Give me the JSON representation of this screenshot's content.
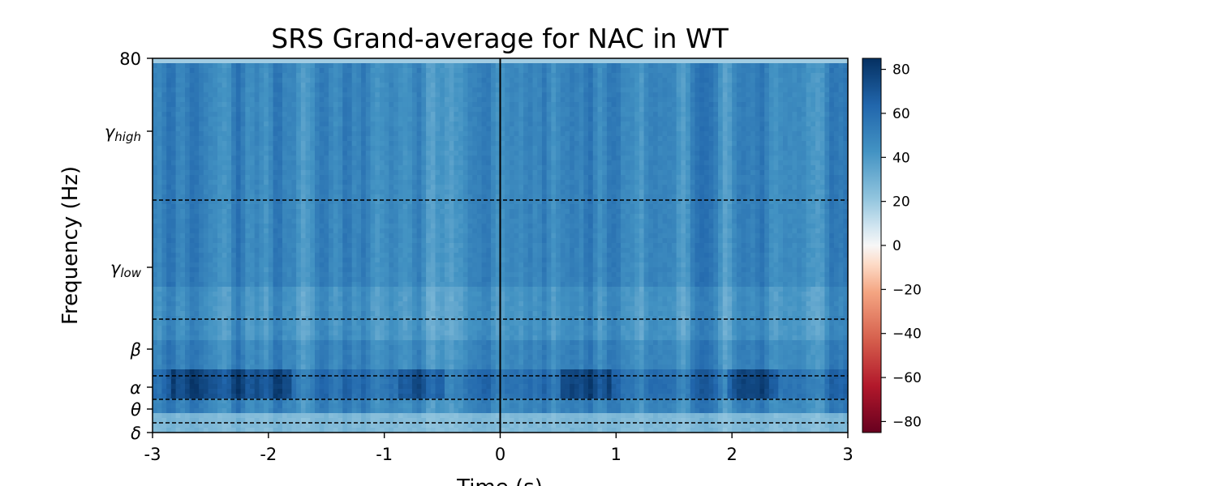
{
  "chart_data": {
    "type": "heatmap",
    "title": "SRS Grand-average for NAC in WT",
    "xlabel": "Time (s)",
    "ylabel": "Frequency (Hz)",
    "x_ticks": [
      {
        "value": -3,
        "label": "-3"
      },
      {
        "value": -2,
        "label": "-2"
      },
      {
        "value": -1,
        "label": "-1"
      },
      {
        "value": 0,
        "label": "0"
      },
      {
        "value": 1,
        "label": "1"
      },
      {
        "value": 2,
        "label": "2"
      },
      {
        "value": 3,
        "label": "3"
      }
    ],
    "xlim": [
      -3,
      3
    ],
    "ylim": [
      2,
      80
    ],
    "y_ticks": [
      {
        "value": 2,
        "label": "δ"
      },
      {
        "value": 7,
        "label": "θ"
      },
      {
        "value": 12,
        "label": "α"
      },
      {
        "value": 20,
        "label": "β",
        "italic": true
      },
      {
        "value": 37,
        "label": "γ",
        "sub": "low"
      },
      {
        "value": 65,
        "label": "γ",
        "sub": "high"
      },
      {
        "value": 80,
        "label": "80"
      }
    ],
    "band_boundaries_hz": [
      4,
      9,
      14,
      26,
      51
    ],
    "event_marker_time": 0,
    "colormap": "RdBu",
    "colorbar": {
      "min": -85,
      "max": 85,
      "ticks": [
        80,
        60,
        40,
        20,
        0,
        -20,
        -40,
        -60,
        -80
      ],
      "tick_labels": [
        "80",
        "60",
        "40",
        "20",
        "0",
        "−20",
        "−40",
        "−60",
        "−80"
      ]
    },
    "values_description_range": [
      20,
      85
    ]
  }
}
